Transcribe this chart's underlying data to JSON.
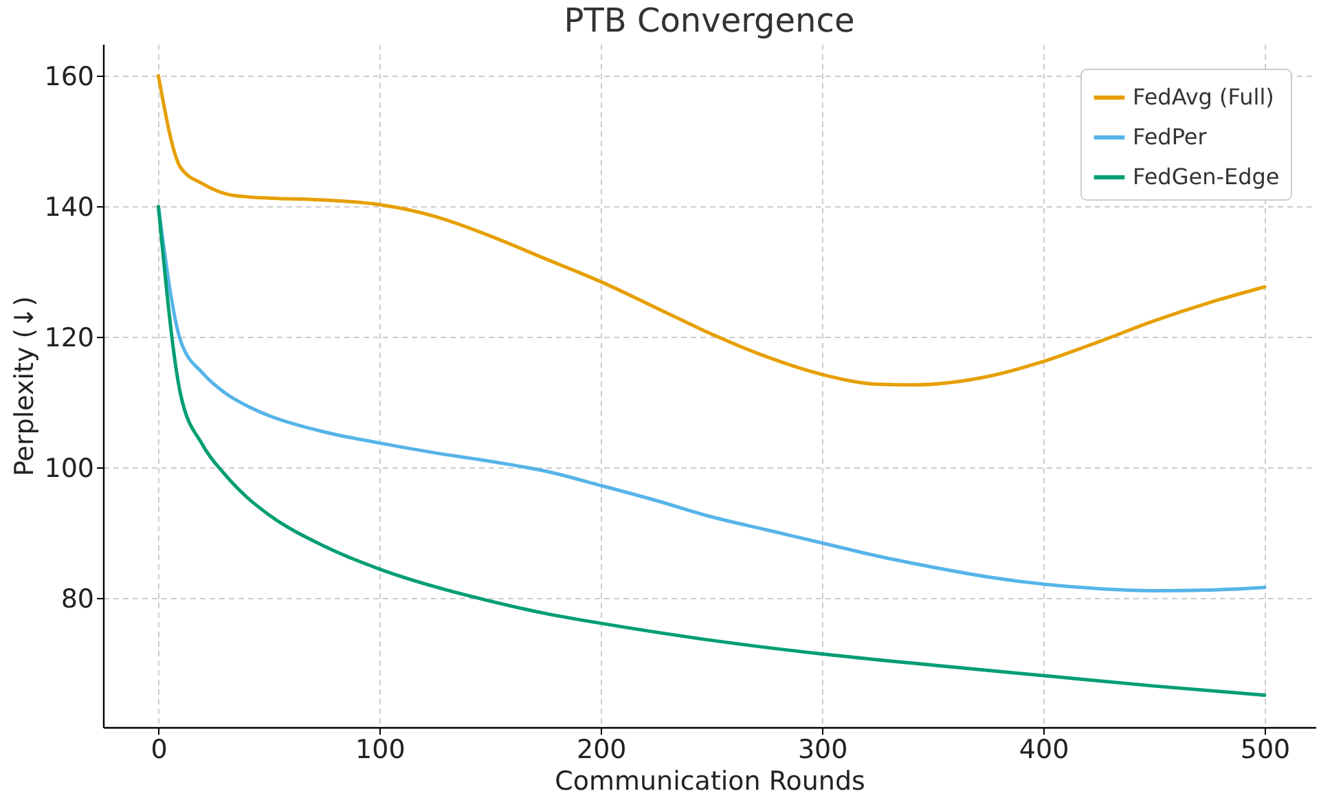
{
  "chart_data": {
    "type": "line",
    "title": "PTB Convergence",
    "xlabel": "Communication Rounds",
    "ylabel": "Perplexity (↓)",
    "xlim": [
      -25,
      523
    ],
    "xticks": [
      0,
      100,
      200,
      300,
      400,
      500
    ],
    "ylim": [
      60.3,
      164.9
    ],
    "yticks": [
      80,
      100,
      120,
      140,
      160
    ],
    "grid": true,
    "legend": "top right",
    "marker": "none",
    "line_style": "solid",
    "series": [
      {
        "name": "FedAvg (Full)",
        "color": "#e69f00",
        "x": [
          0,
          10,
          20,
          30,
          40,
          50,
          75,
          100,
          125,
          150,
          175,
          200,
          225,
          250,
          275,
          300,
          325,
          340,
          375,
          400,
          425,
          450,
          475,
          500
        ],
        "values": [
          160,
          146,
          143.5,
          142,
          141.5,
          141.3,
          141,
          140.3,
          138.5,
          135.5,
          132,
          128.5,
          124.5,
          120.5,
          117,
          114.3,
          112.8,
          112.7,
          114,
          116.3,
          119.3,
          122.5,
          125.3,
          127.7
        ]
      },
      {
        "name": "FedPer",
        "color": "#56b4e9",
        "x": [
          0,
          10,
          20,
          30,
          40,
          50,
          75,
          100,
          125,
          150,
          175,
          200,
          225,
          250,
          275,
          300,
          325,
          350,
          375,
          400,
          425,
          450,
          475,
          500
        ],
        "values": [
          140,
          119.5,
          114.5,
          111.5,
          109.5,
          108,
          105.5,
          103.8,
          102.3,
          101,
          99.5,
          97.3,
          95,
          92.5,
          90.5,
          88.5,
          86.5,
          84.8,
          83.3,
          82.2,
          81.5,
          81.2,
          81.3,
          81.7
        ]
      },
      {
        "name": "FedGen-Edge",
        "color": "#009e73",
        "x": [
          0,
          10,
          20,
          30,
          40,
          50,
          75,
          100,
          125,
          150,
          175,
          200,
          250,
          300,
          350,
          400,
          450,
          500
        ],
        "values": [
          140,
          111.3,
          103.5,
          99,
          95.5,
          92.8,
          88,
          84.5,
          81.8,
          79.6,
          77.7,
          76.2,
          73.6,
          71.5,
          69.8,
          68.2,
          66.6,
          65.2
        ]
      }
    ]
  }
}
